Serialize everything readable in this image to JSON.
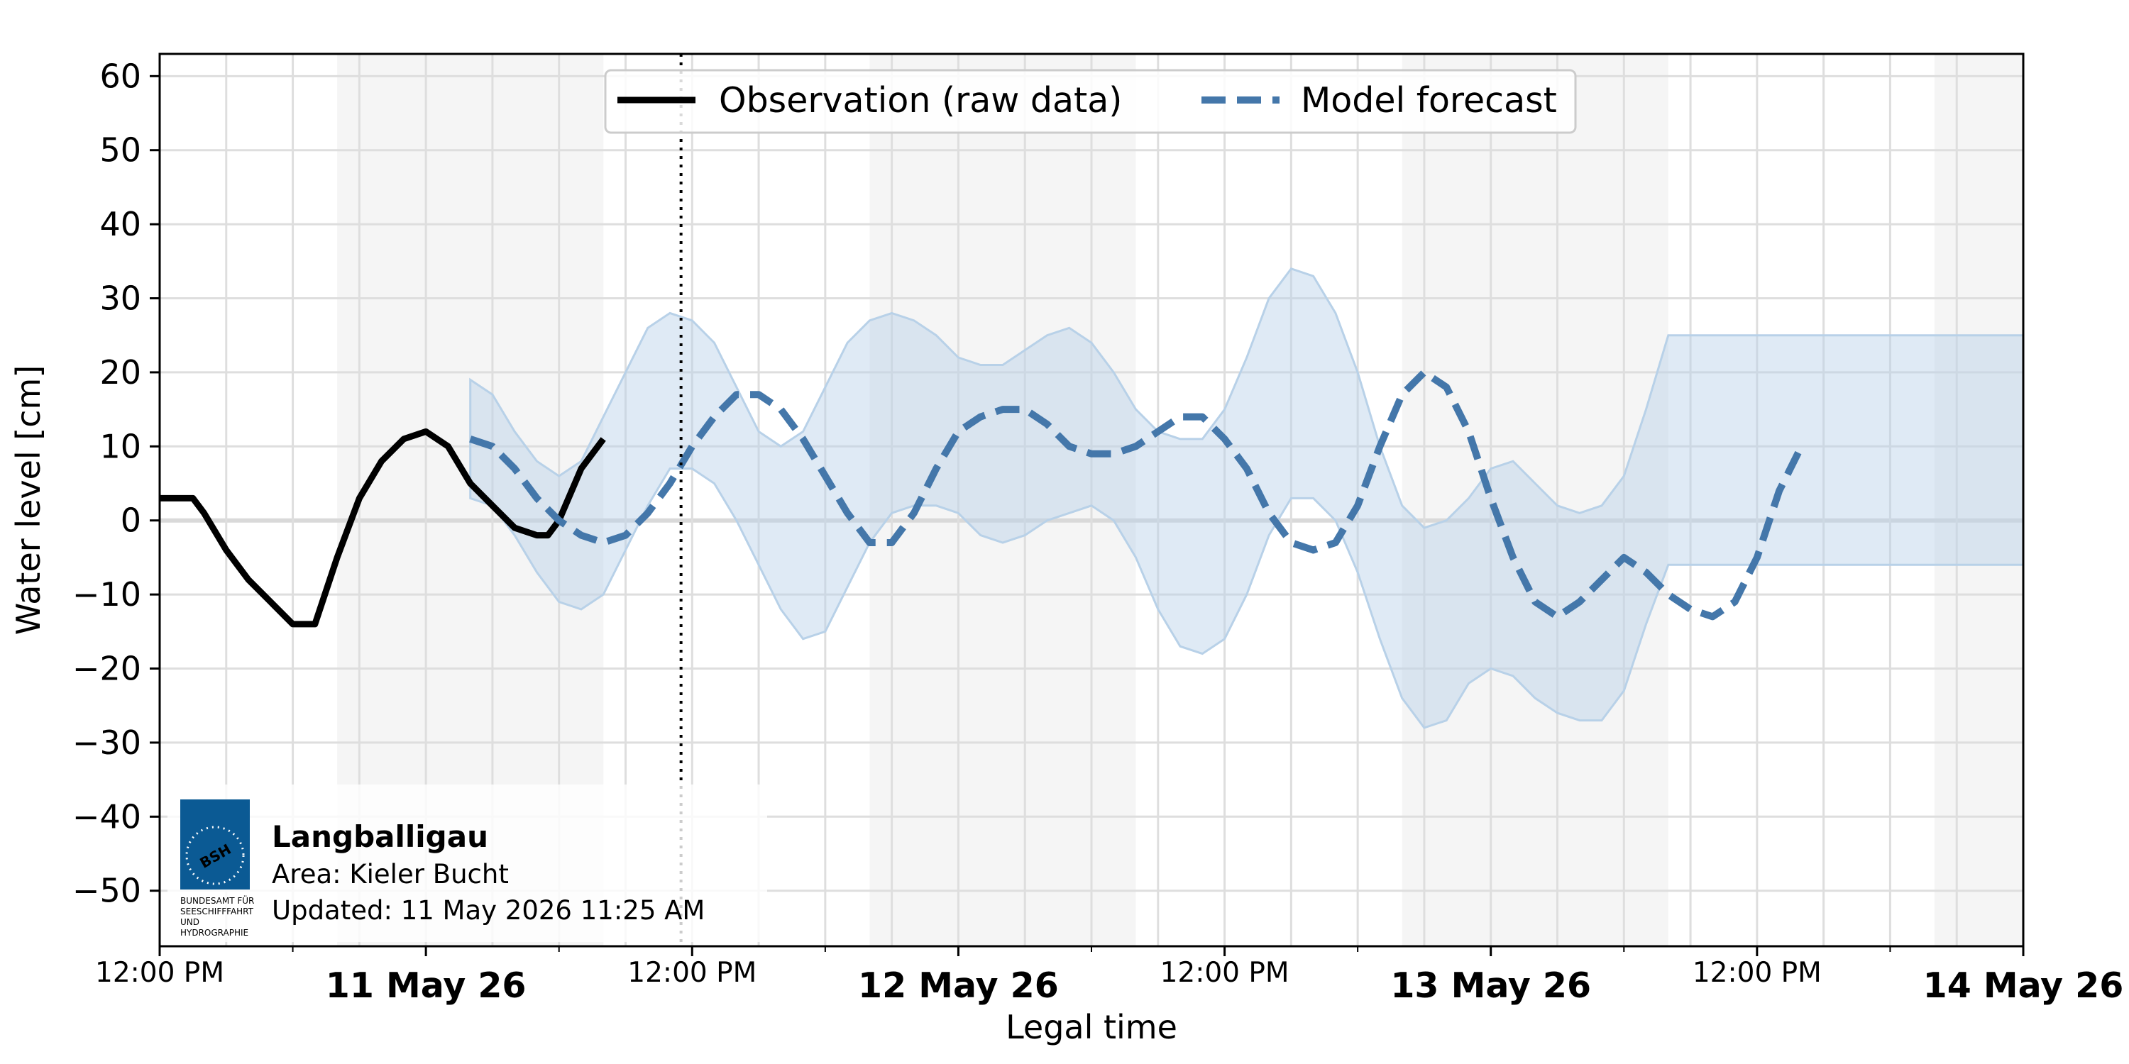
{
  "chart_data": {
    "type": "line",
    "xlabel": "Legal time",
    "ylabel": "Water level [cm]",
    "ylim": [
      -57.5,
      63
    ],
    "yticks": [
      60,
      50,
      40,
      30,
      20,
      10,
      0,
      -10,
      -20,
      -30,
      -40,
      -50
    ],
    "ytick_labels": [
      "60",
      "50",
      "40",
      "30",
      "20",
      "10",
      "0",
      "−10",
      "−20",
      "−30",
      "−40",
      "−50"
    ],
    "xlim_hours": [
      0,
      84
    ],
    "xticks_major": [
      {
        "hour": 0,
        "label": "12:00 PM",
        "bold": false
      },
      {
        "hour": 12,
        "label": "11 May 26",
        "bold": true
      },
      {
        "hour": 24,
        "label": "12:00 PM",
        "bold": false
      },
      {
        "hour": 36,
        "label": "12 May 26",
        "bold": true
      },
      {
        "hour": 48,
        "label": "12:00 PM",
        "bold": false
      },
      {
        "hour": 60,
        "label": "13 May 26",
        "bold": true
      },
      {
        "hour": 72,
        "label": "12:00 PM",
        "bold": false
      },
      {
        "hour": 84,
        "label": "14 May 26",
        "bold": true
      }
    ],
    "xticks_minor_hours": [
      6,
      18,
      30,
      42,
      54,
      66,
      78
    ],
    "night_bands_hours": [
      [
        8,
        20
      ],
      [
        32,
        44
      ],
      [
        56,
        68
      ],
      [
        80,
        84
      ]
    ],
    "now_marker_hour": 23.5,
    "grid": true,
    "legend_position": "top-center",
    "series": [
      {
        "name": "Observation (raw data)",
        "style": "solid",
        "color": "#000000",
        "x_hours": [
          0,
          1.5,
          2,
          3,
          4,
          5,
          6,
          7,
          8,
          9,
          10,
          11,
          12,
          13,
          14,
          15,
          16,
          17,
          17.5,
          18,
          19,
          20,
          21,
          22,
          23,
          23.5
        ],
        "values": [
          3,
          3,
          1,
          -4,
          -8,
          -11,
          -14,
          -14,
          -5,
          3,
          8,
          11,
          12,
          10,
          5,
          2,
          -1,
          -2,
          -2,
          0,
          7,
          11,
          null,
          null,
          null,
          null
        ]
      },
      {
        "name": "Model forecast",
        "style": "dashed",
        "color": "#4477aa",
        "x_hours": [
          14,
          15,
          16,
          17,
          18,
          19,
          20,
          21,
          22,
          23,
          24,
          25,
          26,
          27,
          28,
          29,
          30,
          31,
          32,
          33,
          34,
          35,
          36,
          37,
          38,
          39,
          40,
          41,
          42,
          43,
          44,
          45,
          46,
          47,
          48,
          49,
          50,
          51,
          52,
          53,
          54,
          55,
          56,
          57,
          58,
          59,
          60,
          61,
          62,
          63,
          64,
          65,
          66,
          67,
          68,
          69,
          70,
          71,
          72,
          73,
          74,
          75,
          76,
          77,
          78,
          79,
          80,
          81,
          82,
          83,
          84
        ],
        "values": [
          11,
          10,
          7,
          3,
          0,
          -2,
          -3,
          -2,
          1,
          5,
          10,
          14,
          17,
          17,
          15,
          11,
          6,
          1,
          -3,
          -3,
          1,
          7,
          12,
          14,
          15,
          15,
          13,
          10,
          9,
          9,
          10,
          12,
          14,
          14,
          11,
          7,
          1,
          -3,
          -4,
          -3,
          2,
          10,
          17,
          20,
          18,
          12,
          3,
          -5,
          -11,
          -13,
          -11,
          -8,
          -5,
          -7,
          -10,
          -12,
          -13,
          -11,
          -5,
          4,
          10,
          null,
          null,
          null,
          null,
          null,
          null,
          null,
          null,
          null,
          null
        ]
      }
    ],
    "uncertainty_band": {
      "color": "#b8d1e8",
      "x_hours": [
        14,
        15,
        16,
        17,
        18,
        19,
        20,
        21,
        22,
        23,
        24,
        25,
        26,
        27,
        28,
        29,
        30,
        31,
        32,
        33,
        34,
        35,
        36,
        37,
        38,
        39,
        40,
        41,
        42,
        43,
        44,
        45,
        46,
        47,
        48,
        49,
        50,
        51,
        52,
        53,
        54,
        55,
        56,
        57,
        58,
        59,
        60,
        61,
        62,
        63,
        64,
        65,
        66,
        67,
        68,
        69,
        70,
        71,
        72,
        73,
        74,
        75,
        76,
        77,
        78,
        79,
        80,
        81,
        82,
        83,
        84
      ],
      "upper": [
        19,
        17,
        12,
        8,
        6,
        8,
        14,
        20,
        26,
        28,
        27,
        24,
        18,
        12,
        10,
        12,
        18,
        24,
        27,
        28,
        27,
        25,
        22,
        21,
        21,
        23,
        25,
        26,
        24,
        20,
        15,
        12,
        11,
        11,
        15,
        22,
        30,
        34,
        33,
        28,
        20,
        10,
        2,
        -1,
        0,
        3,
        7,
        8,
        5,
        2,
        1,
        2,
        6,
        15,
        25,
        25,
        25,
        25,
        25,
        25,
        25,
        25,
        25,
        25,
        25,
        25,
        25,
        25,
        25,
        25,
        25
      ],
      "lower": [
        3,
        2,
        -2,
        -7,
        -11,
        -12,
        -10,
        -4,
        2,
        7,
        7,
        5,
        0,
        -6,
        -12,
        -16,
        -15,
        -9,
        -3,
        1,
        2,
        2,
        1,
        -2,
        -3,
        -2,
        0,
        1,
        2,
        0,
        -5,
        -12,
        -17,
        -18,
        -16,
        -10,
        -2,
        3,
        3,
        0,
        -7,
        -16,
        -24,
        -28,
        -27,
        -22,
        -20,
        -21,
        -24,
        -26,
        -27,
        -27,
        -23,
        -14,
        -6,
        -6,
        -6,
        -6,
        -6,
        -6,
        -6,
        -6,
        -6,
        -6,
        -6,
        -6,
        -6,
        -6,
        -6,
        -6,
        -6
      ]
    },
    "info_box": {
      "title": "Langballigau",
      "area": "Area: Kieler Bucht",
      "updated": "Updated: 11 May 2026 11:25 AM",
      "logo_text": "BSH",
      "logo_caption": [
        "BUNDESAMT FÜR",
        "SEESCHIFFFAHRT",
        "UND",
        "HYDROGRAPHIE"
      ],
      "logo_color": "#0b5a94"
    }
  }
}
